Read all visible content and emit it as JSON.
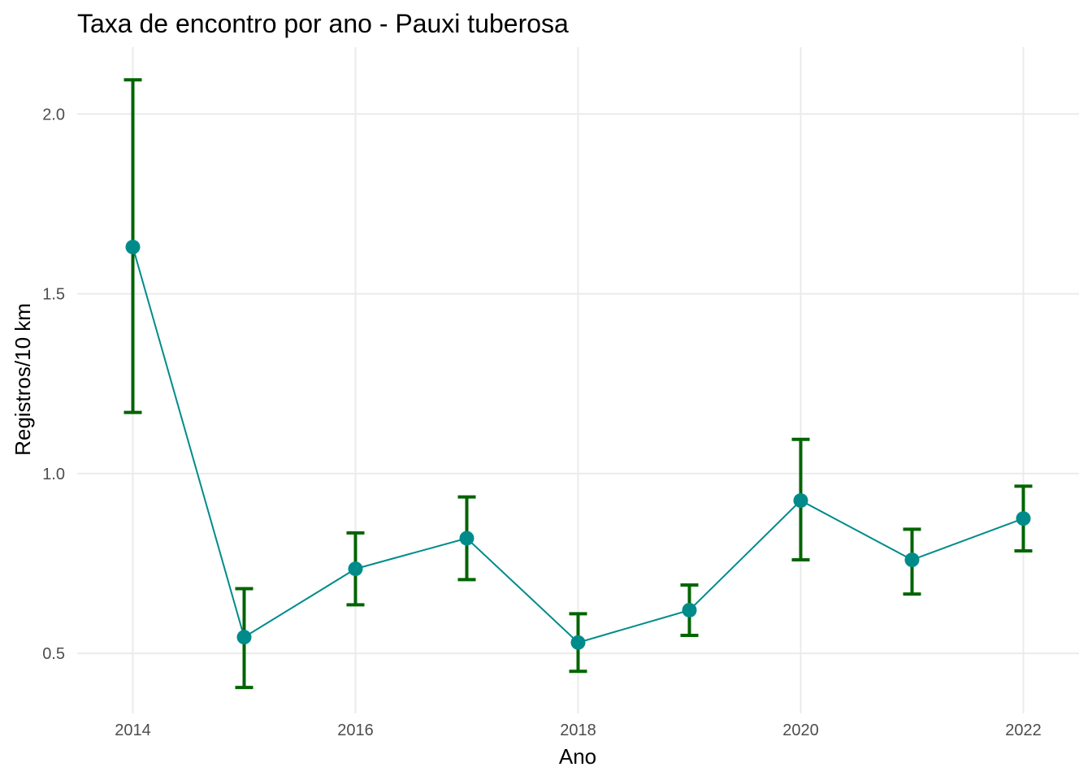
{
  "chart_data": {
    "type": "line",
    "title": "Taxa de encontro por ano - Pauxi tuberosa",
    "xlabel": "Ano",
    "ylabel": "Registros/10 km",
    "x": [
      2014,
      2015,
      2016,
      2017,
      2018,
      2019,
      2020,
      2021,
      2022
    ],
    "series": [
      {
        "values": [
          1.63,
          0.545,
          0.735,
          0.82,
          0.53,
          0.62,
          0.925,
          0.76,
          0.875
        ],
        "lower": [
          1.17,
          0.405,
          0.635,
          0.705,
          0.45,
          0.55,
          0.76,
          0.665,
          0.785
        ],
        "upper": [
          2.095,
          0.68,
          0.835,
          0.935,
          0.61,
          0.69,
          1.095,
          0.845,
          0.965
        ]
      }
    ],
    "xlim": [
      2013.5,
      2022.5
    ],
    "ylim": [
      0.333,
      2.186
    ],
    "xticks": [
      2014,
      2016,
      2018,
      2020,
      2022
    ],
    "xtick_labels": [
      "2014",
      "2016",
      "2018",
      "2020",
      "2022"
    ],
    "yticks": [
      0.5,
      1.0,
      1.5,
      2.0
    ],
    "ytick_labels": [
      "0.5",
      "1.0",
      "1.5",
      "2.0"
    ],
    "grid": true,
    "colors": {
      "line": "#008b8b",
      "point": "#008b8b",
      "errorbar": "#006400",
      "grid": "#ebebeb"
    }
  }
}
